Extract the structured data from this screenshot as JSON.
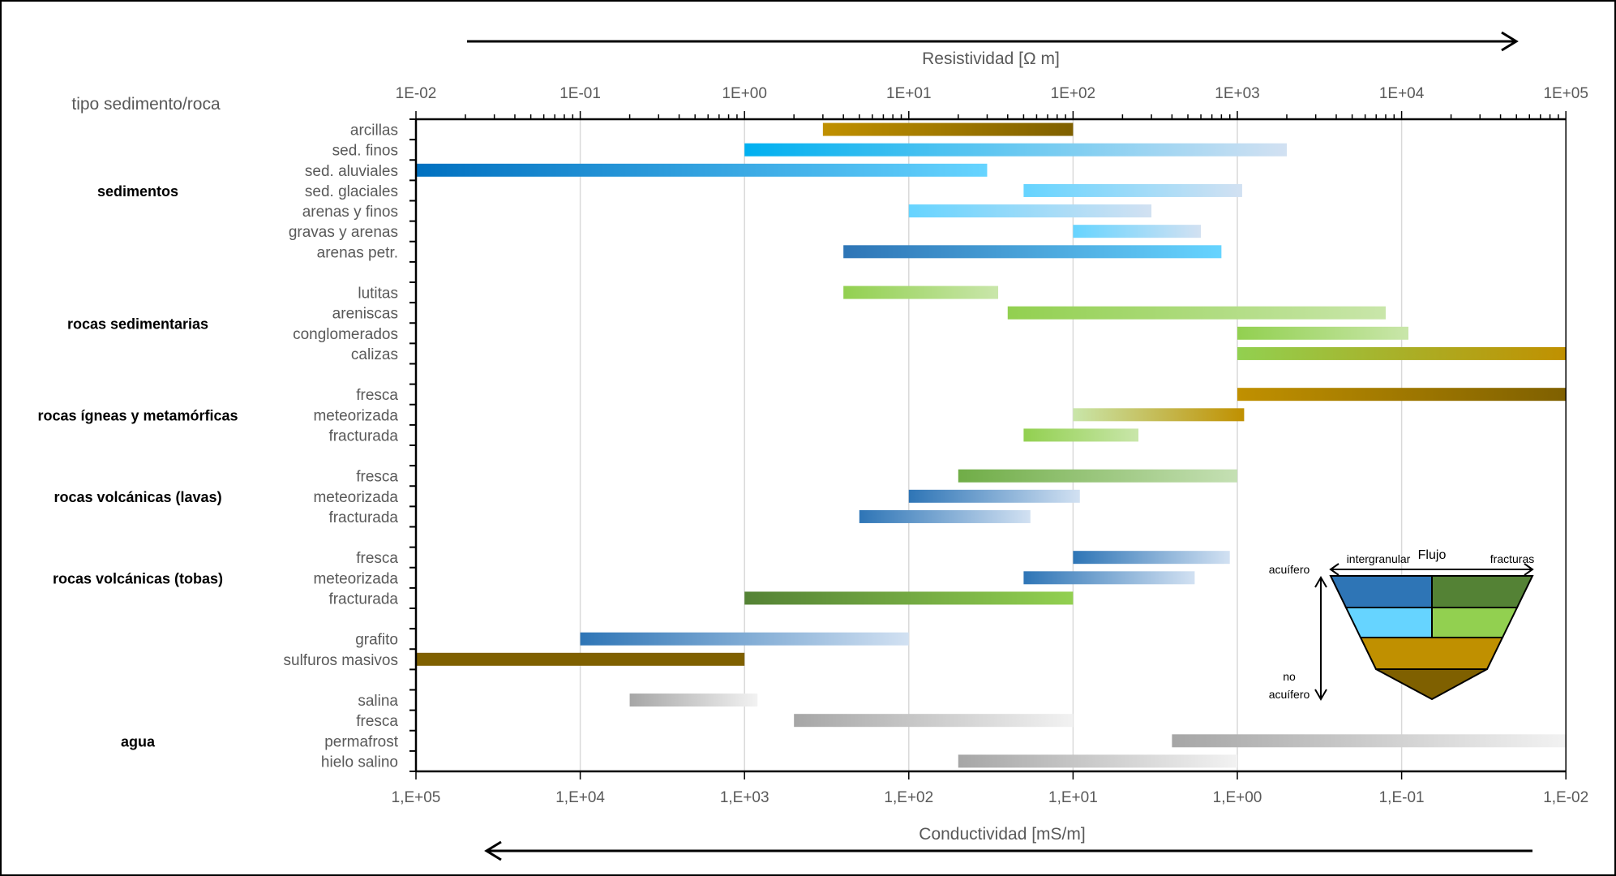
{
  "chart_data": {
    "type": "bar",
    "subtype": "floating-range-horizontal",
    "title": "",
    "y_header": "tipo sedimento/roca",
    "top_axis": {
      "label": "Resistividad [Ω m]",
      "scale": "log",
      "range": [
        0.01,
        100000
      ],
      "tick_labels": [
        "1E-02",
        "1E-01",
        "1E+00",
        "1E+01",
        "1E+02",
        "1E+03",
        "1E+04",
        "1E+05"
      ],
      "direction_arrow": "right"
    },
    "bottom_axis": {
      "label": "Conductividad  [mS/m]",
      "scale": "log",
      "range": [
        100000,
        0.01
      ],
      "tick_labels": [
        "1,E+05",
        "1,E+04",
        "1,E+03",
        "1,E+02",
        "1,E+01",
        "1,E+00",
        "1,E-01",
        "1,E-02"
      ],
      "direction_arrow": "left"
    },
    "grid": true,
    "groups": [
      {
        "name": "sedimentos",
        "rows": [
          0,
          6
        ]
      },
      {
        "name": "rocas sedimentarias",
        "rows": [
          8,
          11
        ]
      },
      {
        "name": "rocas ígneas y metamórficas",
        "rows": [
          13,
          15
        ]
      },
      {
        "name": "rocas volcánicas (lavas)",
        "rows": [
          17,
          19
        ]
      },
      {
        "name": "rocas volcánicas (tobas)",
        "rows": [
          21,
          23
        ]
      },
      {
        "name": "agua",
        "rows": [
          28,
          31
        ]
      }
    ],
    "total_rows": 32,
    "series": [
      {
        "row": 0,
        "name": "arcillas",
        "min": 3,
        "max": 100,
        "color_start": "#C09000",
        "color_end": "#7F6000"
      },
      {
        "row": 1,
        "name": "sed. finos",
        "min": 1,
        "max": 2000,
        "color_start": "#00B0F0",
        "color_end": "#D2E1F2"
      },
      {
        "row": 2,
        "name": "sed. aluviales",
        "min": 0.01,
        "max": 30,
        "color_start": "#0070C0",
        "color_end": "#66D4FF"
      },
      {
        "row": 3,
        "name": "sed. glaciales",
        "min": 50,
        "max": 1070,
        "color_start": "#66D4FF",
        "color_end": "#D2E1F2"
      },
      {
        "row": 4,
        "name": "arenas y finos",
        "min": 10,
        "max": 300,
        "color_start": "#66D4FF",
        "color_end": "#D2E1F2"
      },
      {
        "row": 5,
        "name": "gravas y arenas",
        "min": 100,
        "max": 600,
        "color_start": "#66D4FF",
        "color_end": "#D2E1F2"
      },
      {
        "row": 6,
        "name": "arenas petr.",
        "min": 4,
        "max": 800,
        "color_start": "#2E75B6",
        "color_end": "#66D4FF"
      },
      {
        "row": 8,
        "name": "lutitas",
        "min": 4,
        "max": 35,
        "color_start": "#92D050",
        "color_end": "#C9E6AA"
      },
      {
        "row": 9,
        "name": "areniscas",
        "min": 40,
        "max": 8000,
        "color_start": "#92D050",
        "color_end": "#C9E6AA"
      },
      {
        "row": 10,
        "name": "conglomerados",
        "min": 1000,
        "max": 11000,
        "color_start": "#92D050",
        "color_end": "#C9E6AA"
      },
      {
        "row": 11,
        "name": "calizas",
        "min": 1000,
        "max": 100000,
        "color_start": "#92D050",
        "color_end": "#C09000"
      },
      {
        "row": 13,
        "name": "fresca",
        "min": 1000,
        "max": 100000,
        "color_start": "#C09000",
        "color_end": "#7F6000"
      },
      {
        "row": 14,
        "name": "meteorizada",
        "min": 100,
        "max": 1100,
        "color_start": "#C9E6AA",
        "color_end": "#C09000"
      },
      {
        "row": 15,
        "name": "fracturada",
        "min": 50,
        "max": 250,
        "color_start": "#92D050",
        "color_end": "#C9E6AA"
      },
      {
        "row": 17,
        "name": "fresca",
        "min": 20,
        "max": 1000,
        "color_start": "#70AD47",
        "color_end": "#C5E0B4"
      },
      {
        "row": 18,
        "name": "meteorizada",
        "min": 10,
        "max": 110,
        "color_start": "#2E75B6",
        "color_end": "#D2E1F2"
      },
      {
        "row": 19,
        "name": "fracturada",
        "min": 5,
        "max": 55,
        "color_start": "#2E75B6",
        "color_end": "#D2E1F2"
      },
      {
        "row": 21,
        "name": "fresca",
        "min": 100,
        "max": 900,
        "color_start": "#2E75B6",
        "color_end": "#D2E1F2"
      },
      {
        "row": 22,
        "name": "meteorizada",
        "min": 50,
        "max": 550,
        "color_start": "#2E75B6",
        "color_end": "#D2E1F2"
      },
      {
        "row": 23,
        "name": "fracturada",
        "min": 1,
        "max": 100,
        "color_start": "#548235",
        "color_end": "#92D050"
      },
      {
        "row": 25,
        "name": "grafito",
        "min": 0.1,
        "max": 10,
        "color_start": "#2E75B6",
        "color_end": "#D2E1F2"
      },
      {
        "row": 26,
        "name": "sulfuros masivos",
        "min": 0.01,
        "max": 1,
        "color_start": "#7F6000",
        "color_end": "#7F6000"
      },
      {
        "row": 28,
        "name": "salina",
        "min": 0.2,
        "max": 1.2,
        "color_start": "#A6A6A6",
        "color_end": "#F2F2F2"
      },
      {
        "row": 29,
        "name": "fresca",
        "min": 2,
        "max": 100,
        "color_start": "#A6A6A6",
        "color_end": "#F2F2F2"
      },
      {
        "row": 30,
        "name": "permafrost",
        "min": 400,
        "max": 100000,
        "color_start": "#A6A6A6",
        "color_end": "#F2F2F2"
      },
      {
        "row": 31,
        "name": "hielo salino",
        "min": 20,
        "max": 1000,
        "color_start": "#A6A6A6",
        "color_end": "#F2F2F2"
      }
    ],
    "inset": {
      "title": "Flujo",
      "left_label": "intergranular",
      "right_label": "fracturas",
      "top_label": "acuífero",
      "bottom_label_line1": "no",
      "bottom_label_line2": "acuífero",
      "bands": [
        {
          "left_color": "#2E75B6",
          "right_color": "#548235"
        },
        {
          "left_color": "#66D4FF",
          "right_color": "#92D050"
        },
        {
          "color": "#C09000"
        },
        {
          "color": "#7F6000"
        }
      ]
    }
  }
}
